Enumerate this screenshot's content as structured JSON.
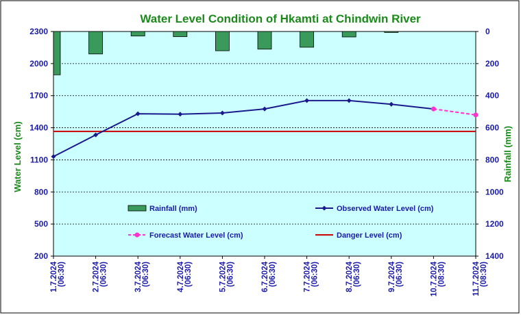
{
  "chart_data": {
    "type": "line",
    "title": "Water Level Condition of Hkamti at Chindwin River",
    "ylabel": "Water Level (cm)",
    "y2label": "Rainfall (mm)",
    "ylim": [
      200,
      2300
    ],
    "y2lim": [
      0,
      1400
    ],
    "yticks": [
      200,
      500,
      800,
      1100,
      1400,
      1700,
      2000,
      2300
    ],
    "y2ticks": [
      0,
      200,
      400,
      600,
      800,
      1000,
      1200,
      1400
    ],
    "y2_inverted": true,
    "grid": "horizontal dashed",
    "categories": [
      [
        "1.7.2024",
        "(06:30)"
      ],
      [
        "2.7.2024",
        "(06:30)"
      ],
      [
        "3.7.2024",
        "(06:30)"
      ],
      [
        "4.7.2024",
        "(06:30)"
      ],
      [
        "5.7.2024",
        "(06:30)"
      ],
      [
        "6.7.2024",
        "(06:30)"
      ],
      [
        "7.7.2024",
        "(06:30)"
      ],
      [
        "8.7.2024",
        "(06:30)"
      ],
      [
        "9.7.2024",
        "(06:30)"
      ],
      [
        "10.7.2024",
        "(08:30)"
      ],
      [
        "11.7.2024",
        "(08:30)"
      ]
    ],
    "series": [
      {
        "name": "Rainfall (mm)",
        "type": "bar",
        "axis": "right",
        "color": "#3a9a5c",
        "values": [
          270,
          140,
          28,
          32,
          120,
          110,
          98,
          34,
          6,
          0,
          0
        ]
      },
      {
        "name": "Observed Water Level (cm)",
        "type": "line",
        "axis": "left",
        "color": "#1a1a8c",
        "values": [
          1131,
          1333,
          1531,
          1527,
          1538,
          1576,
          1654,
          1654,
          1620,
          1576,
          null
        ]
      },
      {
        "name": "Forecast Water Level (cm)",
        "type": "line",
        "axis": "left",
        "style": "dashed",
        "color": "#ff33cc",
        "values": [
          null,
          null,
          null,
          null,
          null,
          null,
          null,
          null,
          null,
          1576,
          1520
        ]
      },
      {
        "name": "Danger Level (cm)",
        "type": "line",
        "axis": "left",
        "color": "#cc0000",
        "values": [
          1366,
          1366,
          1366,
          1366,
          1366,
          1366,
          1366,
          1366,
          1366,
          1366,
          1366
        ]
      }
    ],
    "legend": "inside plot, bottom"
  },
  "colors": {
    "plot_bg": "#ccffff",
    "title": "#1a8a1a",
    "axis_label": "#1a8a1a",
    "tick_text": "#1a1aa8",
    "bar_fill": "#3a9a5c"
  }
}
